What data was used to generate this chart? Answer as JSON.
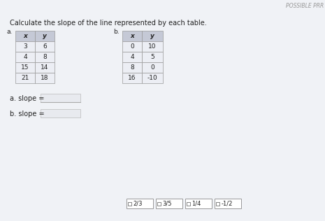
{
  "title": "Calculate the slope of the line represented by each table.",
  "possible_prr": "POSSIBLE PRR",
  "table_a_label": "a.",
  "table_b_label": "b.",
  "table_a_headers": [
    "x",
    "y"
  ],
  "table_b_headers": [
    "x",
    "y"
  ],
  "table_a_data": [
    [
      "3",
      "6"
    ],
    [
      "4",
      "8"
    ],
    [
      "15",
      "14"
    ],
    [
      "21",
      "18"
    ]
  ],
  "table_b_data": [
    [
      "0",
      "10"
    ],
    [
      "4",
      "5"
    ],
    [
      "8",
      "0"
    ],
    [
      "16",
      "-10"
    ]
  ],
  "answer_a_label": "a. slope =",
  "answer_b_label": "b. slope =",
  "choice_texts": [
    "2/3",
    "3/5",
    "1/4",
    "-1/2"
  ],
  "bg_color": "#dde0e8",
  "table_header_bg": "#c5c9d6",
  "table_row_bg": "#eceef4",
  "table_border": "#999999",
  "text_color": "#222222",
  "ans_box_color": "#dde0e8",
  "white": "#ffffff",
  "gray_line": "#aaaaaa"
}
